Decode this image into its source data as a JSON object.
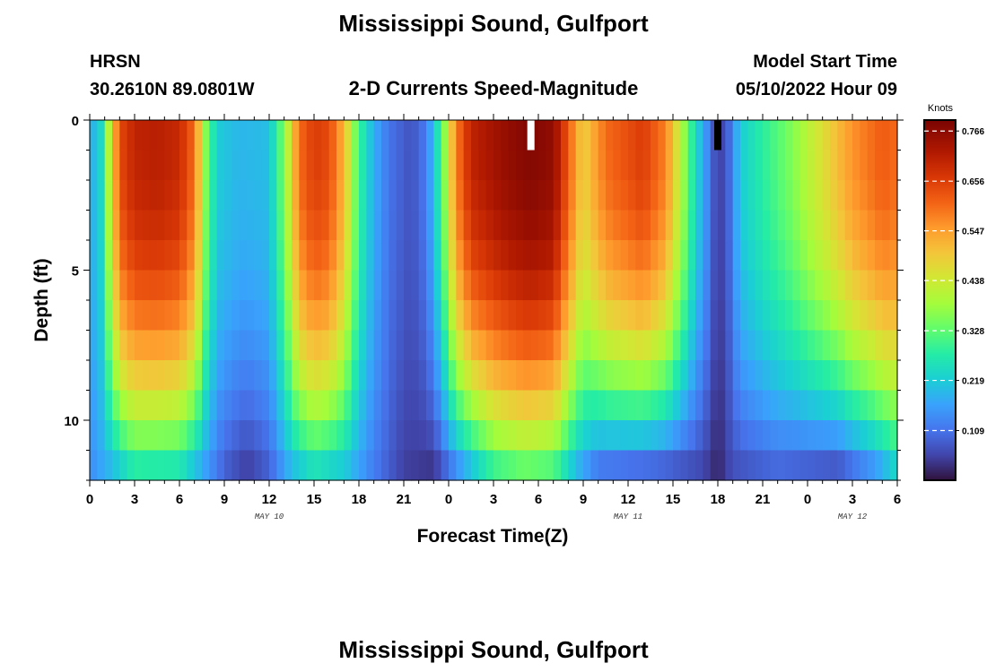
{
  "page": {
    "title": "Mississippi Sound, Gulfport",
    "station": "HRSN",
    "coordinates": "30.2610N  89.0801W",
    "subtitle": "2-D Currents Speed-Magnitude",
    "model_label": "Model Start Time",
    "model_time": "05/10/2022 Hour 09",
    "footer_title": "Mississippi Sound, Gulfport"
  },
  "chart_data": {
    "type": "heatmap",
    "title": "2-D Currents Speed-Magnitude",
    "xlabel": "Forecast Time(Z)",
    "ylabel": "Depth (ft)",
    "x_range_hours": [
      0,
      54
    ],
    "x_ticks": [
      {
        "h": 0,
        "label": "0"
      },
      {
        "h": 3,
        "label": "3"
      },
      {
        "h": 6,
        "label": "6"
      },
      {
        "h": 9,
        "label": "9"
      },
      {
        "h": 12,
        "label": "12"
      },
      {
        "h": 15,
        "label": "15"
      },
      {
        "h": 18,
        "label": "18"
      },
      {
        "h": 21,
        "label": "21"
      },
      {
        "h": 24,
        "label": "0"
      },
      {
        "h": 27,
        "label": "3"
      },
      {
        "h": 30,
        "label": "6"
      },
      {
        "h": 33,
        "label": "9"
      },
      {
        "h": 36,
        "label": "12"
      },
      {
        "h": 39,
        "label": "15"
      },
      {
        "h": 42,
        "label": "18"
      },
      {
        "h": 45,
        "label": "21"
      },
      {
        "h": 48,
        "label": "0"
      },
      {
        "h": 51,
        "label": "3"
      },
      {
        "h": 54,
        "label": "6"
      }
    ],
    "date_labels": [
      {
        "h": 12,
        "label": "MAY 10"
      },
      {
        "h": 36,
        "label": "MAY 11"
      },
      {
        "h": 51,
        "label": "MAY 12"
      }
    ],
    "y_range_ft": [
      0,
      12
    ],
    "y_ticks": [
      {
        "v": 0,
        "label": "0"
      },
      {
        "v": 5,
        "label": "5"
      },
      {
        "v": 10,
        "label": "10"
      }
    ],
    "depth_levels_ft": [
      0.5,
      1.5,
      2.5,
      3.5,
      4.5,
      5.5,
      6.5,
      7.5,
      8.5,
      9.5,
      10.5,
      11.5
    ],
    "colorbar": {
      "label": "Knots",
      "min": 0.0,
      "max": 0.79,
      "ticks": [
        "0.109",
        "0.219",
        "0.328",
        "0.438",
        "0.547",
        "0.656",
        "0.766"
      ]
    },
    "surface_speed_knots": [
      {
        "h": 0,
        "v": 0.18
      },
      {
        "h": 0.7,
        "v": 0.22
      },
      {
        "h": 1.3,
        "v": 0.42
      },
      {
        "h": 2.0,
        "v": 0.64
      },
      {
        "h": 3.0,
        "v": 0.7
      },
      {
        "h": 4.5,
        "v": 0.71
      },
      {
        "h": 6.0,
        "v": 0.69
      },
      {
        "h": 7.0,
        "v": 0.6
      },
      {
        "h": 7.7,
        "v": 0.37
      },
      {
        "h": 8.5,
        "v": 0.22
      },
      {
        "h": 10.0,
        "v": 0.19
      },
      {
        "h": 12.0,
        "v": 0.2
      },
      {
        "h": 13.0,
        "v": 0.36
      },
      {
        "h": 14.0,
        "v": 0.6
      },
      {
        "h": 15.0,
        "v": 0.66
      },
      {
        "h": 16.0,
        "v": 0.64
      },
      {
        "h": 17.0,
        "v": 0.52
      },
      {
        "h": 18.0,
        "v": 0.3
      },
      {
        "h": 19.0,
        "v": 0.18
      },
      {
        "h": 20.0,
        "v": 0.11
      },
      {
        "h": 21.5,
        "v": 0.07
      },
      {
        "h": 22.5,
        "v": 0.12
      },
      {
        "h": 23.5,
        "v": 0.3
      },
      {
        "h": 24.5,
        "v": 0.58
      },
      {
        "h": 25.5,
        "v": 0.7
      },
      {
        "h": 28.0,
        "v": 0.76
      },
      {
        "h": 29.5,
        "v": 0.78
      },
      {
        "h": 31.0,
        "v": 0.76
      },
      {
        "h": 32.0,
        "v": 0.62
      },
      {
        "h": 33.0,
        "v": 0.48
      },
      {
        "h": 34.5,
        "v": 0.6
      },
      {
        "h": 37.0,
        "v": 0.66
      },
      {
        "h": 38.5,
        "v": 0.58
      },
      {
        "h": 39.5,
        "v": 0.42
      },
      {
        "h": 40.5,
        "v": 0.24
      },
      {
        "h": 41.3,
        "v": 0.14
      },
      {
        "h": 42.0,
        "v": 0.04
      },
      {
        "h": 42.7,
        "v": 0.09
      },
      {
        "h": 43.5,
        "v": 0.22
      },
      {
        "h": 45.0,
        "v": 0.28
      },
      {
        "h": 47.0,
        "v": 0.36
      },
      {
        "h": 49.0,
        "v": 0.46
      },
      {
        "h": 51.0,
        "v": 0.56
      },
      {
        "h": 53.0,
        "v": 0.62
      },
      {
        "h": 54.0,
        "v": 0.6
      }
    ],
    "bottom_speed_knots": [
      {
        "h": 0,
        "v": 0.14
      },
      {
        "h": 1.5,
        "v": 0.2
      },
      {
        "h": 3.0,
        "v": 0.28
      },
      {
        "h": 6.0,
        "v": 0.27
      },
      {
        "h": 7.5,
        "v": 0.18
      },
      {
        "h": 9.0,
        "v": 0.09
      },
      {
        "h": 10.5,
        "v": 0.05
      },
      {
        "h": 12.0,
        "v": 0.09
      },
      {
        "h": 13.5,
        "v": 0.2
      },
      {
        "h": 15.0,
        "v": 0.26
      },
      {
        "h": 17.0,
        "v": 0.22
      },
      {
        "h": 19.0,
        "v": 0.12
      },
      {
        "h": 21.0,
        "v": 0.05
      },
      {
        "h": 23.0,
        "v": 0.04
      },
      {
        "h": 25.0,
        "v": 0.18
      },
      {
        "h": 27.0,
        "v": 0.3
      },
      {
        "h": 29.0,
        "v": 0.34
      },
      {
        "h": 31.0,
        "v": 0.32
      },
      {
        "h": 32.5,
        "v": 0.2
      },
      {
        "h": 34.0,
        "v": 0.12
      },
      {
        "h": 38.0,
        "v": 0.1
      },
      {
        "h": 41.0,
        "v": 0.06
      },
      {
        "h": 42.0,
        "v": 0.02
      },
      {
        "h": 43.0,
        "v": 0.07
      },
      {
        "h": 46.0,
        "v": 0.1
      },
      {
        "h": 50.0,
        "v": 0.08
      },
      {
        "h": 52.5,
        "v": 0.16
      },
      {
        "h": 54.0,
        "v": 0.24
      }
    ],
    "missing_cells": [
      {
        "h": 29.5,
        "depth_ft": 0.5,
        "note": "white"
      },
      {
        "h": 42.0,
        "depth_ft": 0.5,
        "note": "black"
      }
    ]
  }
}
